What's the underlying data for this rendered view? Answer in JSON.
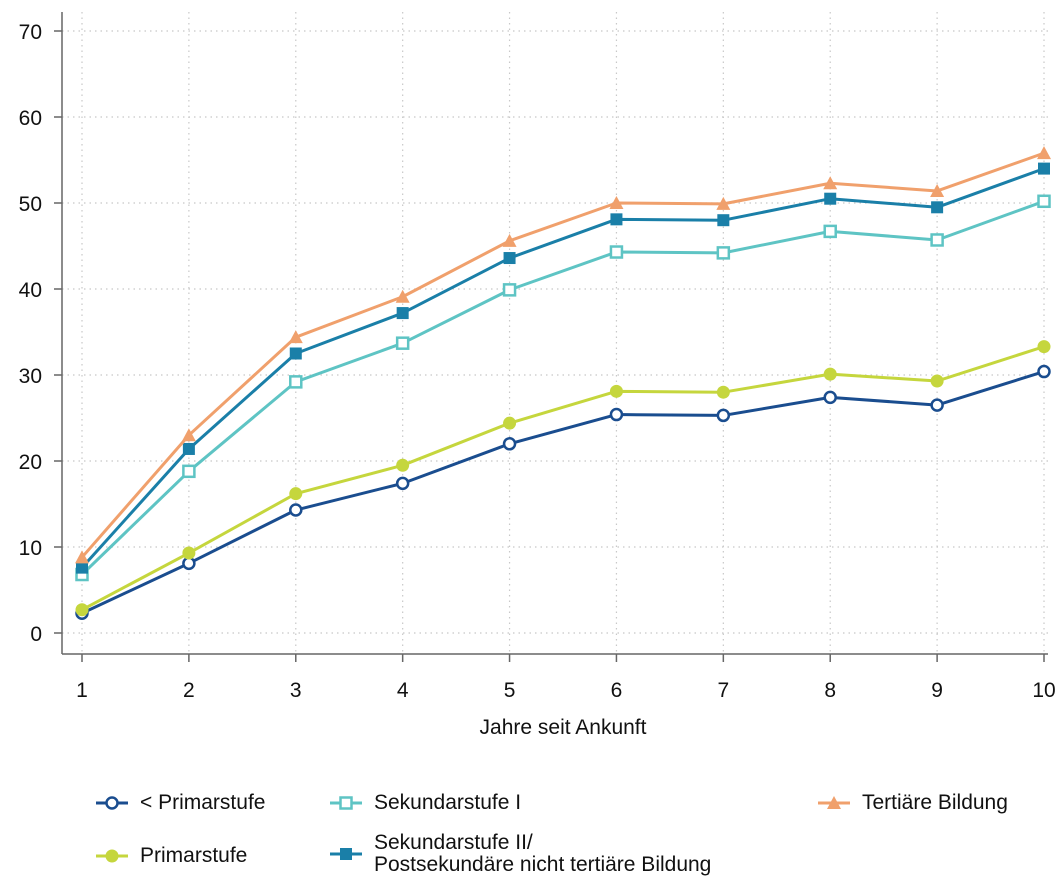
{
  "chart_data": {
    "type": "line",
    "title": "",
    "xlabel": "Jahre seit Ankunft",
    "ylabel": "",
    "x": [
      1,
      2,
      3,
      4,
      5,
      6,
      7,
      8,
      9,
      10
    ],
    "xlim": [
      1,
      10
    ],
    "ylim": [
      0,
      70
    ],
    "yticks": [
      0,
      10,
      20,
      30,
      40,
      50,
      60,
      70
    ],
    "xticks": [
      1,
      2,
      3,
      4,
      5,
      6,
      7,
      8,
      9,
      10
    ],
    "grid": true,
    "legend_position": "bottom",
    "series": [
      {
        "name": "< Primarstufe",
        "color": "#1a4d8f",
        "marker": "hollow-circle",
        "values": [
          2.3,
          8.1,
          14.3,
          17.4,
          22.0,
          25.4,
          25.3,
          27.4,
          26.5,
          30.4
        ]
      },
      {
        "name": "Primarstufe",
        "color": "#c5d63d",
        "marker": "filled-circle",
        "values": [
          2.7,
          9.3,
          16.2,
          19.5,
          24.4,
          28.1,
          28.0,
          30.1,
          29.3,
          33.3
        ]
      },
      {
        "name": "Sekundarstufe I",
        "color": "#5ec4c4",
        "marker": "hollow-square",
        "values": [
          6.8,
          18.8,
          29.2,
          33.7,
          39.9,
          44.3,
          44.2,
          46.7,
          45.7,
          50.2
        ]
      },
      {
        "name": "Sekundarstufe II/\nPostsekundäre nicht tertiäre Bildung",
        "color": "#1a7fa8",
        "marker": "filled-square",
        "values": [
          7.6,
          21.4,
          32.5,
          37.2,
          43.6,
          48.1,
          48.0,
          50.5,
          49.5,
          54.0
        ]
      },
      {
        "name": "Tertiäre Bildung",
        "color": "#f0a06c",
        "marker": "triangle",
        "values": [
          8.8,
          23.0,
          34.4,
          39.1,
          45.6,
          50.0,
          49.9,
          52.3,
          51.4,
          55.8
        ]
      }
    ]
  },
  "legend": {
    "items": [
      {
        "label": "< Primarstufe"
      },
      {
        "label": "Sekundarstufe I"
      },
      {
        "label": "Tertiäre Bildung"
      },
      {
        "label": "Primarstufe"
      },
      {
        "label_line1": "Sekundarstufe II/",
        "label_line2": "Postsekundäre nicht tertiäre Bildung"
      }
    ]
  }
}
